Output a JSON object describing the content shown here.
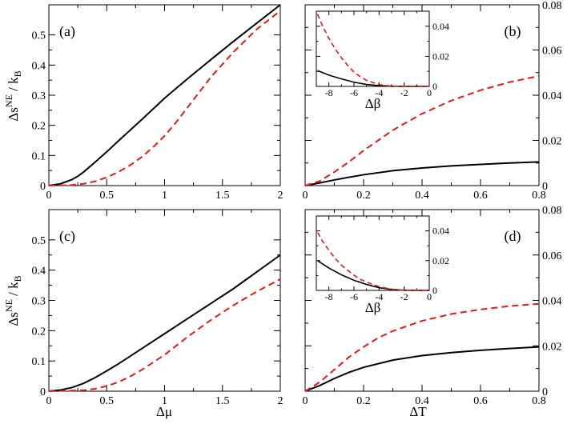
{
  "chart_data": [
    {
      "type": "line",
      "panel_label": "(a)",
      "xlabel": "",
      "ylabel": "Δṡ^NE / k_B",
      "xlim": [
        0,
        2
      ],
      "ylim": [
        0,
        0.6
      ],
      "xticks": [
        0,
        0.5,
        1,
        1.5,
        2
      ],
      "xtick_labels": [
        "0",
        "0.5",
        "1",
        "1.5",
        "2"
      ],
      "yticks": [
        0,
        0.1,
        0.2,
        0.3,
        0.4,
        0.5
      ],
      "ytick_labels": [
        "0",
        "0.1",
        "0.2",
        "0.3",
        "0.4",
        "0.5"
      ],
      "series": [
        {
          "name": "solid",
          "color": "#000000",
          "dash": "none",
          "x": [
            0,
            0.1,
            0.2,
            0.25,
            0.3,
            0.4,
            0.5,
            0.6,
            0.8,
            1.0,
            1.2,
            1.4,
            1.6,
            1.8,
            2.0
          ],
          "y": [
            0,
            0.006,
            0.02,
            0.031,
            0.045,
            0.078,
            0.112,
            0.148,
            0.218,
            0.29,
            0.355,
            0.418,
            0.48,
            0.54,
            0.6
          ]
        },
        {
          "name": "dashed",
          "color": "#e0191b",
          "dash": "8,5",
          "x": [
            0,
            0.2,
            0.3,
            0.4,
            0.5,
            0.6,
            0.7,
            0.8,
            0.9,
            1.0,
            1.1,
            1.2,
            1.3,
            1.4,
            1.6,
            1.8,
            2.0
          ],
          "y": [
            0,
            0.002,
            0.006,
            0.014,
            0.027,
            0.045,
            0.067,
            0.094,
            0.127,
            0.165,
            0.21,
            0.26,
            0.31,
            0.36,
            0.445,
            0.52,
            0.58
          ]
        }
      ]
    },
    {
      "type": "line",
      "panel_label": "(b)",
      "xlabel": "",
      "ylabel": "",
      "xlim": [
        0,
        0.8
      ],
      "ylim": [
        0,
        0.08
      ],
      "xticks": [
        0,
        0.2,
        0.4,
        0.6,
        0.8
      ],
      "xtick_labels": [
        "0",
        "0.2",
        "0.4",
        "0.6",
        "0.8"
      ],
      "yticks": [
        0,
        0.02,
        0.04,
        0.06,
        0.08
      ],
      "ytick_labels": [
        "0",
        "0.02",
        "0.04",
        "0.06",
        "0.08"
      ],
      "series": [
        {
          "name": "solid",
          "color": "#000000",
          "dash": "none",
          "x": [
            0,
            0.05,
            0.1,
            0.15,
            0.2,
            0.3,
            0.4,
            0.5,
            0.6,
            0.7,
            0.8
          ],
          "y": [
            0,
            0.0012,
            0.0025,
            0.0037,
            0.0048,
            0.0066,
            0.0078,
            0.0087,
            0.0094,
            0.01,
            0.0105
          ]
        },
        {
          "name": "dashed",
          "color": "#e0191b",
          "dash": "8,5",
          "x": [
            0,
            0.05,
            0.1,
            0.15,
            0.2,
            0.25,
            0.3,
            0.35,
            0.4,
            0.5,
            0.6,
            0.7,
            0.8
          ],
          "y": [
            0,
            0.002,
            0.006,
            0.0105,
            0.0155,
            0.02,
            0.0245,
            0.0282,
            0.0318,
            0.0376,
            0.0422,
            0.0458,
            0.0485
          ]
        }
      ],
      "inset": {
        "xlabel": "Δβ",
        "xlim": [
          -9,
          0
        ],
        "ylim": [
          0,
          0.05
        ],
        "xticks": [
          -8,
          -6,
          -4,
          -2,
          0
        ],
        "xtick_labels": [
          "-8",
          "-6",
          "-4",
          "-2",
          "0"
        ],
        "yticks": [
          0,
          0.02,
          0.04
        ],
        "ytick_labels": [
          "0",
          "0.02",
          "0.04"
        ],
        "series": [
          {
            "name": "solid",
            "color": "#000000",
            "dash": "none",
            "x": [
              -8.9,
              -8,
              -7,
              -6,
              -5,
              -4,
              -3,
              -2,
              -1,
              0
            ],
            "y": [
              0.0105,
              0.0075,
              0.005,
              0.0028,
              0.0013,
              0.0005,
              0.0001,
              0,
              0,
              0
            ]
          },
          {
            "name": "dashed",
            "color": "#e0191b",
            "dash": "6,4",
            "x": [
              -8.9,
              -8.5,
              -8,
              -7.5,
              -7,
              -6.5,
              -6,
              -5.5,
              -5,
              -4,
              -3,
              -2,
              -1,
              0
            ],
            "y": [
              0.048,
              0.04,
              0.032,
              0.025,
              0.019,
              0.014,
              0.0095,
              0.0065,
              0.004,
              0.0012,
              0.0002,
              0,
              0,
              0
            ]
          }
        ]
      }
    },
    {
      "type": "line",
      "panel_label": "(c)",
      "xlabel": "Δμ",
      "ylabel": "Δṡ^NE / k_B",
      "xlim": [
        0,
        2
      ],
      "ylim": [
        0,
        0.6
      ],
      "xticks": [
        0,
        0.5,
        1,
        1.5,
        2
      ],
      "xtick_labels": [
        "0",
        "0.5",
        "1",
        "1.5",
        "2"
      ],
      "yticks": [
        0,
        0.1,
        0.2,
        0.3,
        0.4,
        0.5
      ],
      "ytick_labels": [
        "0",
        "0.1",
        "0.2",
        "0.3",
        "0.4",
        "0.5"
      ],
      "series": [
        {
          "name": "solid",
          "color": "#000000",
          "dash": "none",
          "x": [
            0,
            0.1,
            0.2,
            0.3,
            0.4,
            0.5,
            0.6,
            0.8,
            1.0,
            1.2,
            1.4,
            1.6,
            1.8,
            2.0
          ],
          "y": [
            0,
            0.004,
            0.012,
            0.026,
            0.045,
            0.067,
            0.09,
            0.14,
            0.19,
            0.24,
            0.29,
            0.34,
            0.395,
            0.45
          ]
        },
        {
          "name": "dashed",
          "color": "#e0191b",
          "dash": "8,5",
          "x": [
            0,
            0.3,
            0.4,
            0.5,
            0.6,
            0.7,
            0.8,
            0.9,
            1.0,
            1.1,
            1.2,
            1.4,
            1.6,
            1.8,
            2.0
          ],
          "y": [
            0,
            0.003,
            0.008,
            0.017,
            0.03,
            0.048,
            0.07,
            0.095,
            0.12,
            0.15,
            0.18,
            0.235,
            0.285,
            0.33,
            0.37
          ]
        }
      ]
    },
    {
      "type": "line",
      "panel_label": "(d)",
      "xlabel": "ΔT",
      "ylabel": "",
      "xlim": [
        0,
        0.8
      ],
      "ylim": [
        0,
        0.08
      ],
      "xticks": [
        0,
        0.2,
        0.4,
        0.6,
        0.8
      ],
      "xtick_labels": [
        "0",
        "0.2",
        "0.4",
        "0.6",
        "0.8"
      ],
      "yticks": [
        0,
        0.02,
        0.04,
        0.06,
        0.08
      ],
      "ytick_labels": [
        "0",
        "0.02",
        "0.04",
        "0.06",
        "0.08"
      ],
      "series": [
        {
          "name": "solid",
          "color": "#000000",
          "dash": "none",
          "x": [
            0,
            0.05,
            0.1,
            0.15,
            0.2,
            0.3,
            0.4,
            0.5,
            0.6,
            0.7,
            0.8
          ],
          "y": [
            0,
            0.0025,
            0.0056,
            0.0083,
            0.0105,
            0.0137,
            0.0157,
            0.017,
            0.018,
            0.0188,
            0.0195
          ]
        },
        {
          "name": "dashed",
          "color": "#e0191b",
          "dash": "8,5",
          "x": [
            0,
            0.05,
            0.1,
            0.15,
            0.2,
            0.25,
            0.3,
            0.4,
            0.5,
            0.6,
            0.7,
            0.8
          ],
          "y": [
            0,
            0.004,
            0.0095,
            0.015,
            0.0195,
            0.0235,
            0.0265,
            0.031,
            0.034,
            0.036,
            0.0375,
            0.0385
          ]
        }
      ],
      "inset": {
        "xlabel": "Δβ",
        "xlim": [
          -9,
          0
        ],
        "ylim": [
          0,
          0.05
        ],
        "xticks": [
          -8,
          -6,
          -4,
          -2,
          0
        ],
        "xtick_labels": [
          "-8",
          "-6",
          "-4",
          "-2",
          "0"
        ],
        "yticks": [
          0,
          0.02,
          0.04
        ],
        "ytick_labels": [
          "0",
          "0.02",
          "0.04"
        ],
        "series": [
          {
            "name": "solid",
            "color": "#000000",
            "dash": "none",
            "x": [
              -8.9,
              -8,
              -7,
              -6,
              -5,
              -4,
              -3,
              -2,
              -1,
              0
            ],
            "y": [
              0.02,
              0.015,
              0.0105,
              0.0068,
              0.004,
              0.0018,
              0.0006,
              0.0001,
              0,
              0
            ]
          },
          {
            "name": "dashed",
            "color": "#e0191b",
            "dash": "6,4",
            "x": [
              -8.9,
              -8.5,
              -8,
              -7.5,
              -7,
              -6.5,
              -6,
              -5.5,
              -5,
              -4,
              -3,
              -2,
              -1,
              0
            ],
            "y": [
              0.039,
              0.033,
              0.027,
              0.0215,
              0.017,
              0.0135,
              0.0102,
              0.0075,
              0.0055,
              0.0025,
              0.0008,
              0.0001,
              0,
              0
            ]
          }
        ]
      }
    }
  ]
}
